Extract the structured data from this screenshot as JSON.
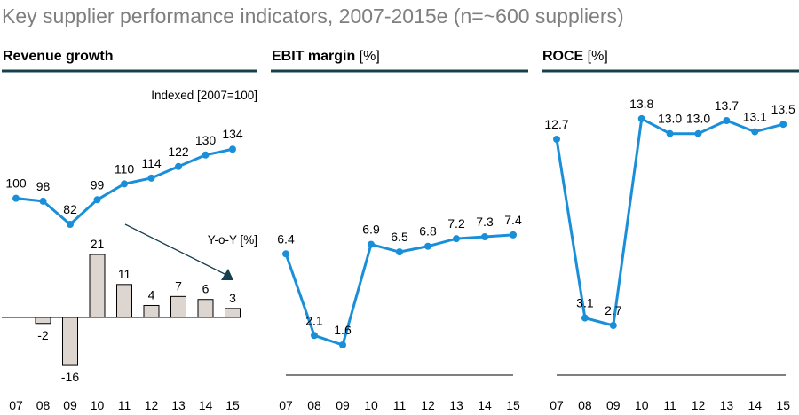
{
  "title": "Key supplier performance indicators, 2007-2015e (n=~600 suppliers)",
  "colors": {
    "line": "#1a8fd9",
    "bar": "#ddd5cf",
    "header_rule": "#17404f",
    "title": "#7f7f7f"
  },
  "chart_data": [
    {
      "type": "line",
      "title": "Revenue growth",
      "unit": "",
      "annotation": "Indexed [2007=100]",
      "categories": [
        "07",
        "08",
        "09",
        "10",
        "11",
        "12",
        "13",
        "14",
        "15"
      ],
      "values": [
        100,
        98,
        82,
        99,
        110,
        114,
        122,
        130,
        134
      ],
      "labels": [
        "100",
        "98",
        "82",
        "99",
        "110",
        "114",
        "122",
        "130",
        "134"
      ],
      "bar_annotation": "Y-o-Y [%]",
      "bars": {
        "type": "bar",
        "values": [
          null,
          -2,
          -16,
          21,
          11,
          4,
          7,
          6,
          3
        ],
        "labels": [
          "",
          "-2",
          "-16",
          "21",
          "11",
          "4",
          "7",
          "6",
          "3"
        ]
      },
      "trend_arrow": "down-right"
    },
    {
      "type": "line",
      "title": "EBIT margin",
      "unit": "[%]",
      "categories": [
        "07",
        "08",
        "09",
        "10",
        "11",
        "12",
        "13",
        "14",
        "15"
      ],
      "values": [
        6.4,
        2.1,
        1.6,
        6.9,
        6.5,
        6.8,
        7.2,
        7.3,
        7.4
      ],
      "labels": [
        "6.4",
        "2.1",
        "1.6",
        "6.9",
        "6.5",
        "6.8",
        "7.2",
        "7.3",
        "7.4"
      ]
    },
    {
      "type": "line",
      "title": "ROCE",
      "unit": "[%]",
      "categories": [
        "07",
        "08",
        "09",
        "10",
        "11",
        "12",
        "13",
        "14",
        "15"
      ],
      "values": [
        12.7,
        3.1,
        2.7,
        13.8,
        13.0,
        13.0,
        13.7,
        13.1,
        13.5
      ],
      "labels": [
        "12.7",
        "3.1",
        "2.7",
        "13.8",
        "13.0",
        "13.0",
        "13.7",
        "13.1",
        "13.5"
      ]
    }
  ]
}
